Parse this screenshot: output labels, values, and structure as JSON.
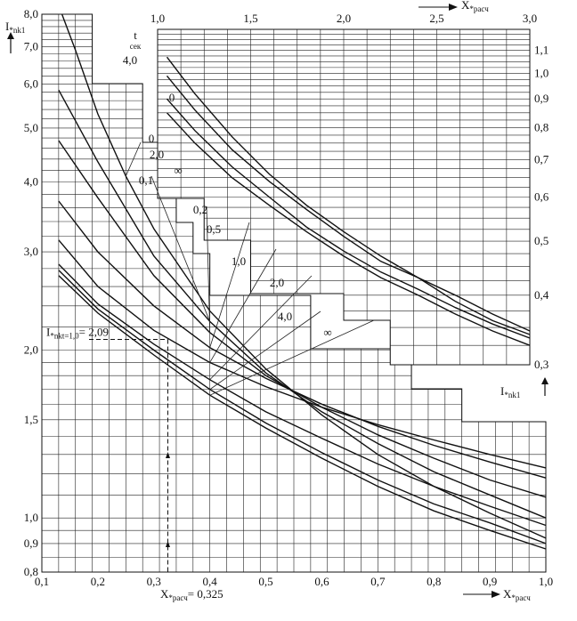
{
  "chart_data": [
    {
      "type": "line",
      "id": "lower",
      "x_axis_label": "X",
      "x_axis_label_sub": "*расч",
      "y_axis_label": "I",
      "y_axis_label_sub": "*nk1",
      "y_scale": "log",
      "xlim": [
        0.1,
        1.0
      ],
      "ylim": [
        0.8,
        8.0
      ],
      "x_ticks": [
        "0,1",
        "0,2",
        "0,3",
        "0,4",
        "0,5",
        "0,6",
        "0,7",
        "0,8",
        "0,9",
        "1,0"
      ],
      "y_ticks": [
        "0,8",
        "0,9",
        "1,0",
        "1,5",
        "2,0",
        "3,0",
        "4,0",
        "5,0",
        "6,0",
        "7,0",
        "8,0"
      ],
      "series": [
        {
          "name": "0",
          "x": [
            0.136,
            0.16,
            0.2,
            0.25,
            0.3,
            0.4,
            0.5,
            0.6,
            0.7,
            0.8,
            0.9,
            1.0
          ],
          "y": [
            8.0,
            6.9,
            5.3,
            4.1,
            3.3,
            2.35,
            1.85,
            1.53,
            1.3,
            1.14,
            1.02,
            0.92
          ]
        },
        {
          "name": "0,1",
          "x": [
            0.13,
            0.2,
            0.3,
            0.4,
            0.5,
            0.6,
            0.7,
            0.8,
            0.9,
            1.0
          ],
          "y": [
            5.85,
            4.35,
            2.95,
            2.25,
            1.82,
            1.55,
            1.36,
            1.21,
            1.1,
            1.0
          ]
        },
        {
          "name": "0,2",
          "x": [
            0.13,
            0.2,
            0.3,
            0.4,
            0.5,
            0.6,
            0.7,
            0.8,
            0.9,
            1.0
          ],
          "y": [
            4.75,
            3.75,
            2.72,
            2.15,
            1.8,
            1.58,
            1.41,
            1.28,
            1.17,
            1.09
          ]
        },
        {
          "name": "0,5",
          "x": [
            0.13,
            0.2,
            0.3,
            0.4,
            0.5,
            0.6,
            0.7,
            0.8,
            0.9,
            1.0
          ],
          "y": [
            3.7,
            3.0,
            2.4,
            2.02,
            1.78,
            1.6,
            1.46,
            1.35,
            1.26,
            1.18
          ]
        },
        {
          "name": "1,0",
          "x": [
            0.13,
            0.2,
            0.3,
            0.4,
            0.5,
            0.6,
            0.7,
            0.8,
            0.9,
            1.0
          ],
          "y": [
            3.15,
            2.6,
            2.17,
            1.9,
            1.72,
            1.58,
            1.47,
            1.38,
            1.3,
            1.23
          ]
        },
        {
          "name": "2,0",
          "x": [
            0.13,
            0.2,
            0.3,
            0.4,
            0.5,
            0.6,
            0.7,
            0.8,
            0.9,
            1.0
          ],
          "y": [
            2.85,
            2.42,
            2.05,
            1.77,
            1.55,
            1.39,
            1.25,
            1.14,
            1.05,
            0.97
          ]
        },
        {
          "name": "4,0",
          "x": [
            0.13,
            0.2,
            0.3,
            0.4,
            0.5,
            0.6,
            0.7,
            0.8,
            0.9,
            1.0
          ],
          "y": [
            2.78,
            2.37,
            2.0,
            1.7,
            1.48,
            1.31,
            1.17,
            1.06,
            0.98,
            0.9
          ]
        },
        {
          "name": "∞",
          "x": [
            0.13,
            0.2,
            0.3,
            0.4,
            0.5,
            0.6,
            0.7,
            0.8,
            0.9,
            1.0
          ],
          "y": [
            2.72,
            2.33,
            1.96,
            1.66,
            1.45,
            1.28,
            1.14,
            1.03,
            0.95,
            0.88
          ]
        }
      ],
      "annotations": [
        {
          "text": "I",
          "sub": "*nkt=1,0",
          "value": "= 2,09",
          "x": 0.325,
          "y": 2.09
        },
        {
          "text": "X",
          "sub": "*расч",
          "value": "= 0,325",
          "x": 0.325,
          "y": 0.8
        }
      ]
    },
    {
      "type": "line",
      "id": "upper",
      "x_axis_label": "X",
      "x_axis_label_sub": "*расч",
      "y_axis_label": "I",
      "y_axis_label_sub": "*nk1",
      "time_label": "t",
      "time_label_sub": "сек",
      "y_scale": "log",
      "xlim": [
        1.0,
        3.0
      ],
      "ylim": [
        0.3,
        1.2
      ],
      "x_ticks": [
        "1,0",
        "1,5",
        "2,0",
        "2,5",
        "3,0"
      ],
      "y_ticks": [
        "0,3",
        "0,4",
        "0,5",
        "0,6",
        "0,7",
        "0,8",
        "0,9",
        "1,0",
        "1,1"
      ],
      "series": [
        {
          "name": "4,0",
          "x": [
            1.05,
            1.2,
            1.4,
            1.6,
            1.8,
            2.0,
            2.2,
            2.4,
            2.6,
            2.8,
            3.0
          ],
          "y": [
            1.07,
            0.92,
            0.77,
            0.66,
            0.58,
            0.52,
            0.47,
            0.43,
            0.4,
            0.37,
            0.345
          ]
        },
        {
          "name": "0",
          "x": [
            1.05,
            1.2,
            1.4,
            1.6,
            1.8,
            2.0,
            2.2,
            2.4,
            2.6,
            2.8,
            3.0
          ],
          "y": [
            0.99,
            0.86,
            0.73,
            0.64,
            0.57,
            0.51,
            0.46,
            0.43,
            0.39,
            0.36,
            0.34
          ]
        },
        {
          "name": "2,0",
          "x": [
            1.05,
            1.2,
            1.4,
            1.6,
            1.8,
            2.0,
            2.2,
            2.4,
            2.6,
            2.8,
            3.0
          ],
          "y": [
            0.9,
            0.79,
            0.68,
            0.6,
            0.53,
            0.48,
            0.44,
            0.41,
            0.38,
            0.355,
            0.335
          ]
        },
        {
          "name": "∞",
          "x": [
            1.05,
            1.2,
            1.4,
            1.6,
            1.8,
            2.0,
            2.2,
            2.4,
            2.6,
            2.8,
            3.0
          ],
          "y": [
            0.85,
            0.75,
            0.65,
            0.58,
            0.52,
            0.47,
            0.43,
            0.4,
            0.37,
            0.345,
            0.325
          ]
        }
      ]
    }
  ]
}
